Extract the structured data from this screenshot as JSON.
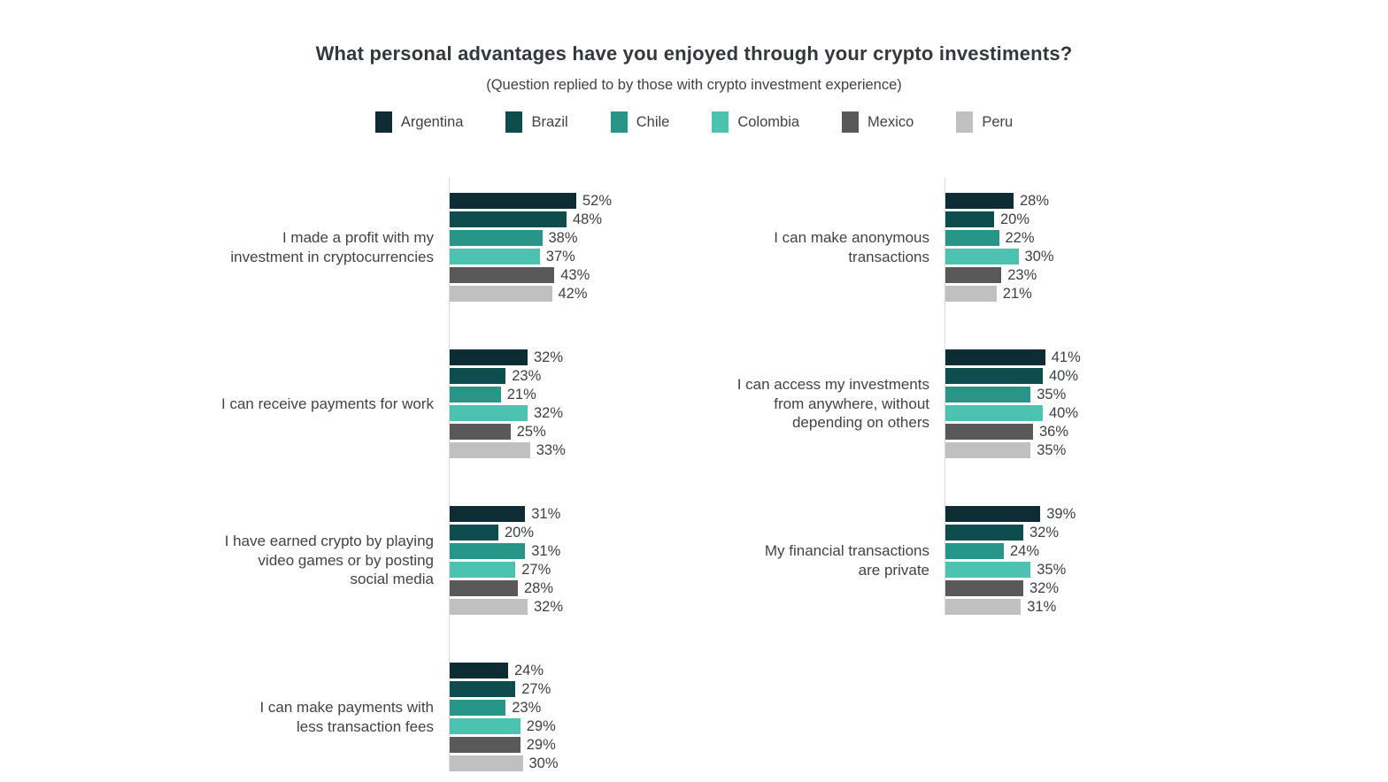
{
  "chart_data": {
    "type": "bar",
    "orientation": "horizontal",
    "title": "What personal advantages have you enjoyed through your crypto investiments?",
    "subtitle": "(Question replied to by those with crypto investment experience)",
    "legend_position": "top",
    "value_suffix": "%",
    "grid": false,
    "series": [
      {
        "name": "Argentina",
        "color": "#0d2c33"
      },
      {
        "name": "Brazil",
        "color": "#0d4d4d"
      },
      {
        "name": "Chile",
        "color": "#279689"
      },
      {
        "name": "Colombia",
        "color": "#4cc2b0"
      },
      {
        "name": "Mexico",
        "color": "#595959"
      },
      {
        "name": "Peru",
        "color": "#c0c0c0"
      }
    ],
    "columns": [
      {
        "groups": [
          {
            "label": "I made a profit with my\ninvestment in cryptocurrencies",
            "values": [
              52,
              48,
              38,
              37,
              43,
              42
            ]
          },
          {
            "label": "I can receive payments for work",
            "values": [
              32,
              23,
              21,
              32,
              25,
              33
            ]
          },
          {
            "label": "I have earned crypto by playing\nvideo games or by posting\nsocial media",
            "values": [
              31,
              20,
              31,
              27,
              28,
              32
            ]
          },
          {
            "label": "I can make payments with\nless transaction fees",
            "values": [
              24,
              27,
              23,
              29,
              29,
              30
            ]
          }
        ]
      },
      {
        "groups": [
          {
            "label": "I can make anonymous\ntransactions",
            "values": [
              28,
              20,
              22,
              30,
              23,
              21
            ]
          },
          {
            "label": "I can access my investments\nfrom anywhere, without\ndepending on others",
            "values": [
              41,
              40,
              35,
              40,
              36,
              35
            ]
          },
          {
            "label": "My financial transactions\nare private",
            "values": [
              39,
              32,
              24,
              35,
              32,
              31
            ]
          }
        ]
      }
    ]
  }
}
